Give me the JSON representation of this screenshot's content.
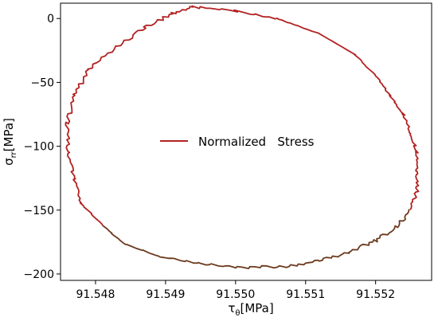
{
  "chart_data": {
    "type": "line",
    "title": "",
    "xlabel": "τ",
    "xlabel_sub": "θ",
    "xlabel_unit": "[MPa]",
    "ylabel": "σ",
    "ylabel_sub": "rr",
    "ylabel_unit": "[MPa]",
    "xlim": [
      91.5475,
      91.5528
    ],
    "ylim": [
      -205,
      12
    ],
    "xticks": [
      91.548,
      91.549,
      91.55,
      91.551,
      91.552
    ],
    "xtick_labels": [
      "91.548",
      "91.549",
      "91.550",
      "91.551",
      "91.552"
    ],
    "yticks": [
      0,
      -50,
      -100,
      -150,
      -200
    ],
    "ytick_labels": [
      "0",
      "−50",
      "−100",
      "−150",
      "−200"
    ],
    "legend": {
      "position": "center",
      "label": "Normalized   Stress",
      "color": "#b22222"
    },
    "series": [
      {
        "name": "Normalized   Stress",
        "colors": [
          "#b22222",
          "#6b3a1e"
        ],
        "x": [
          91.5494,
          91.55,
          91.5506,
          91.5512,
          91.5517,
          91.552,
          91.5522,
          91.5524,
          91.5525,
          91.5526,
          91.5526,
          91.5526,
          91.5525,
          91.5523,
          91.552,
          91.5516,
          91.5512,
          91.5507,
          91.5501,
          91.5495,
          91.5489,
          91.5484,
          91.5481,
          91.5478,
          91.5477,
          91.5476,
          91.5476,
          91.5477,
          91.5479,
          91.5483,
          91.5487,
          91.5491,
          91.5494
        ],
        "y": [
          9,
          6,
          0,
          -12,
          -28,
          -45,
          -60,
          -75,
          -90,
          -105,
          -120,
          -135,
          -150,
          -163,
          -174,
          -183,
          -190,
          -194,
          -195,
          -192,
          -186,
          -176,
          -162,
          -145,
          -125,
          -104,
          -82,
          -60,
          -40,
          -22,
          -7,
          4,
          9
        ],
        "split_index": 16,
        "split_index_2": 22
      }
    ]
  }
}
